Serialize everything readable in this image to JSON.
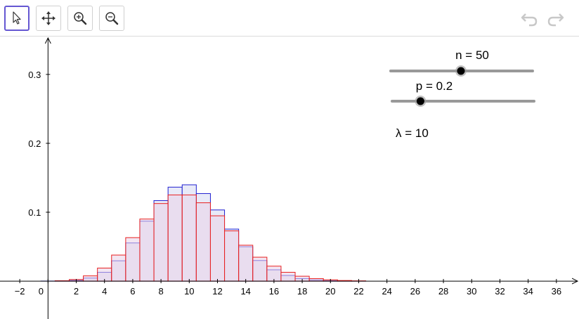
{
  "toolbar": {
    "tools": [
      {
        "name": "move-tool",
        "icon": "arrow-pointer-icon"
      },
      {
        "name": "move-graphics-view-tool",
        "icon": "four-way-arrows-icon"
      },
      {
        "name": "zoom-in-tool",
        "icon": "zoom-in-icon"
      },
      {
        "name": "zoom-out-tool",
        "icon": "zoom-out-icon"
      }
    ],
    "undo_icon": "undo-icon",
    "redo_icon": "redo-icon"
  },
  "sliders": {
    "n": {
      "label": "n = 50",
      "value": 50,
      "min": 1,
      "max": 100
    },
    "p": {
      "label": "p = 0.2",
      "value": 0.2,
      "min": 0,
      "max": 1
    }
  },
  "lambda_text": "λ = 10",
  "colors": {
    "accent": "#6557d2",
    "binomial": "#2020d0",
    "poisson": "#e82020",
    "binomial_fill": "#e8eaf8",
    "poisson_fill": "#ead2e8"
  },
  "chart_data": {
    "type": "bar",
    "x_ticks": [
      -2,
      0,
      2,
      4,
      6,
      8,
      10,
      12,
      14,
      16,
      18,
      20,
      22,
      24,
      26,
      28,
      30,
      32,
      34,
      36
    ],
    "y_ticks": [
      0.1,
      0.2,
      0.3
    ],
    "xlim": [
      -3.4,
      37.6
    ],
    "ylim": [
      -0.055,
      0.355
    ],
    "grid": false,
    "series": [
      {
        "values": [
          0.0001,
          0.0003,
          0.0011,
          0.0044,
          0.0128,
          0.0295,
          0.0554,
          0.087,
          0.1169,
          0.1364,
          0.1398,
          0.1271,
          0.1033,
          0.0755,
          0.0499,
          0.0299,
          0.0164,
          0.0082,
          0.0037,
          0.0016,
          0.0006,
          0.0002,
          0.0001
        ]
      },
      {
        "values": [
          0.0,
          0.0005,
          0.0023,
          0.0076,
          0.0189,
          0.0378,
          0.0631,
          0.0901,
          0.1126,
          0.1251,
          0.1251,
          0.1137,
          0.0948,
          0.0729,
          0.0521,
          0.0347,
          0.0217,
          0.0128,
          0.0071,
          0.0037,
          0.0019,
          0.0009,
          0.0004
        ]
      }
    ]
  }
}
